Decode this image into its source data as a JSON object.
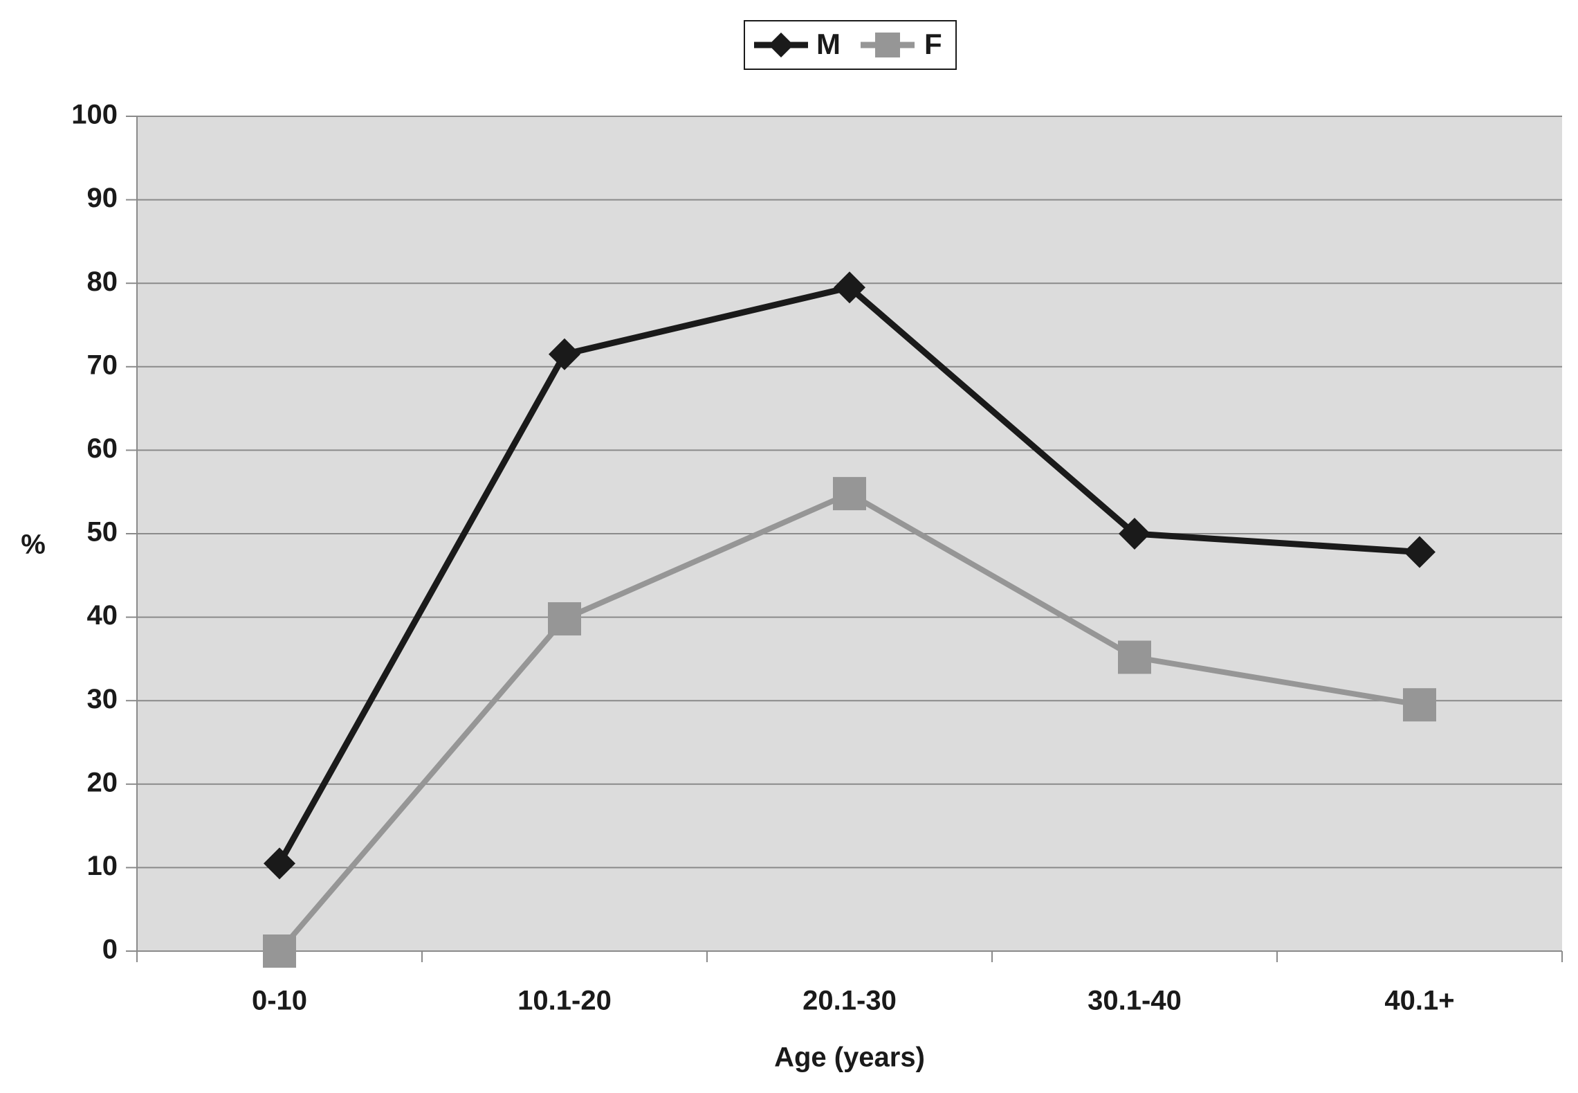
{
  "chart_data": {
    "type": "line",
    "categories": [
      "0-10",
      "10.1-20",
      "20.1-30",
      "30.1-40",
      "40.1+"
    ],
    "series": [
      {
        "name": "M",
        "values": [
          10.5,
          71.5,
          79.5,
          50,
          47.8
        ],
        "color": "#1a1a1a",
        "marker": "diamond"
      },
      {
        "name": "F",
        "values": [
          0,
          39.8,
          54.8,
          35.2,
          29.5
        ],
        "color": "#969696",
        "marker": "square"
      }
    ],
    "xlabel": "Age (years)",
    "ylabel": "%",
    "ylim": [
      0,
      100
    ],
    "yticks": [
      0,
      10,
      20,
      30,
      40,
      50,
      60,
      70,
      80,
      90,
      100
    ],
    "grid": true,
    "legend": "top-center",
    "plot_background": "#dcdcdc"
  }
}
